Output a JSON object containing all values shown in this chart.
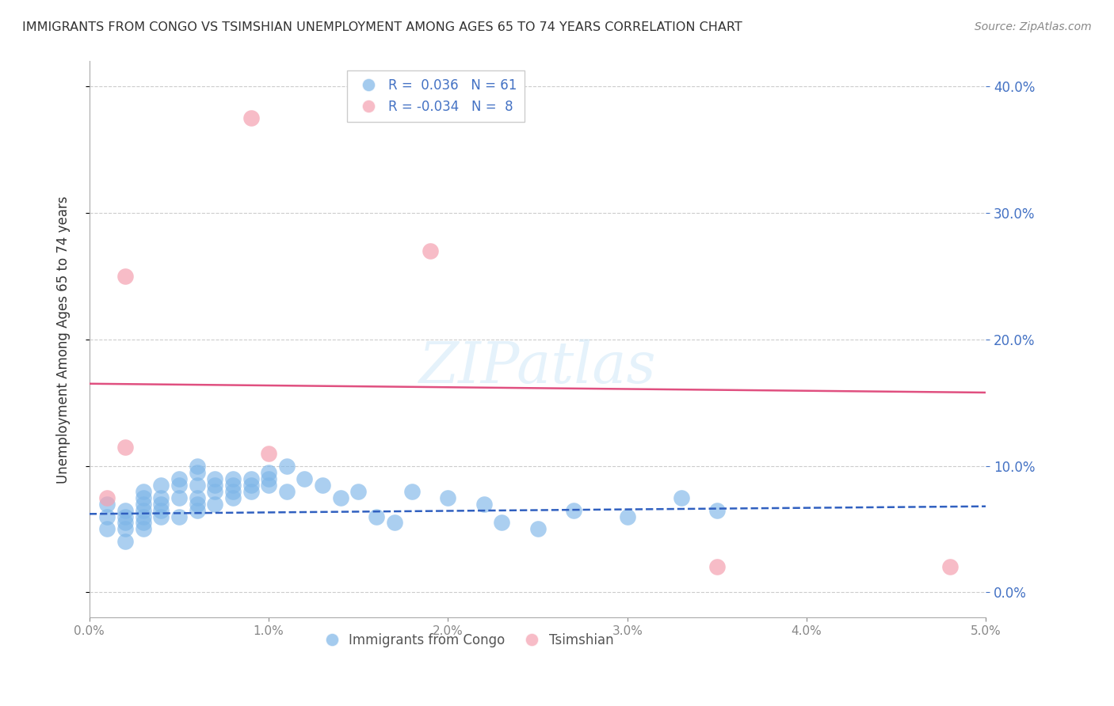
{
  "title": "IMMIGRANTS FROM CONGO VS TSIMSHIAN UNEMPLOYMENT AMONG AGES 65 TO 74 YEARS CORRELATION CHART",
  "source": "Source: ZipAtlas.com",
  "ylabel": "Unemployment Among Ages 65 to 74 years",
  "xlim": [
    0.0,
    0.05
  ],
  "ylim": [
    -0.02,
    0.42
  ],
  "xticks": [
    0.0,
    0.01,
    0.02,
    0.03,
    0.04,
    0.05
  ],
  "yticks": [
    0.0,
    0.1,
    0.2,
    0.3,
    0.4
  ],
  "congo_R": 0.036,
  "congo_N": 61,
  "tsimshian_R": -0.034,
  "tsimshian_N": 8,
  "congo_color": "#7EB6E8",
  "tsimshian_color": "#F4A0B0",
  "congo_line_color": "#3060C0",
  "tsimshian_line_color": "#E05080",
  "accent_color": "#4472C4",
  "congo_scatter_x": [
    0.001,
    0.001,
    0.001,
    0.002,
    0.002,
    0.002,
    0.002,
    0.002,
    0.003,
    0.003,
    0.003,
    0.003,
    0.003,
    0.003,
    0.003,
    0.004,
    0.004,
    0.004,
    0.004,
    0.004,
    0.005,
    0.005,
    0.005,
    0.005,
    0.006,
    0.006,
    0.006,
    0.006,
    0.006,
    0.006,
    0.007,
    0.007,
    0.007,
    0.007,
    0.008,
    0.008,
    0.008,
    0.008,
    0.009,
    0.009,
    0.009,
    0.01,
    0.01,
    0.01,
    0.011,
    0.011,
    0.012,
    0.013,
    0.014,
    0.015,
    0.016,
    0.017,
    0.018,
    0.02,
    0.022,
    0.023,
    0.025,
    0.027,
    0.03,
    0.033,
    0.035
  ],
  "congo_scatter_y": [
    0.07,
    0.06,
    0.05,
    0.065,
    0.06,
    0.055,
    0.05,
    0.04,
    0.08,
    0.075,
    0.07,
    0.065,
    0.06,
    0.055,
    0.05,
    0.085,
    0.075,
    0.07,
    0.065,
    0.06,
    0.09,
    0.085,
    0.075,
    0.06,
    0.1,
    0.095,
    0.085,
    0.075,
    0.07,
    0.065,
    0.09,
    0.085,
    0.08,
    0.07,
    0.09,
    0.085,
    0.08,
    0.075,
    0.09,
    0.085,
    0.08,
    0.095,
    0.09,
    0.085,
    0.1,
    0.08,
    0.09,
    0.085,
    0.075,
    0.08,
    0.06,
    0.055,
    0.08,
    0.075,
    0.07,
    0.055,
    0.05,
    0.065,
    0.06,
    0.075,
    0.065
  ],
  "tsimshian_scatter_x": [
    0.001,
    0.002,
    0.002,
    0.009,
    0.01,
    0.019,
    0.035,
    0.048
  ],
  "tsimshian_scatter_y": [
    0.075,
    0.115,
    0.25,
    0.375,
    0.11,
    0.27,
    0.02,
    0.02
  ],
  "congo_trend_y": [
    0.062,
    0.068
  ],
  "tsimshian_trend_y": [
    0.165,
    0.158
  ]
}
